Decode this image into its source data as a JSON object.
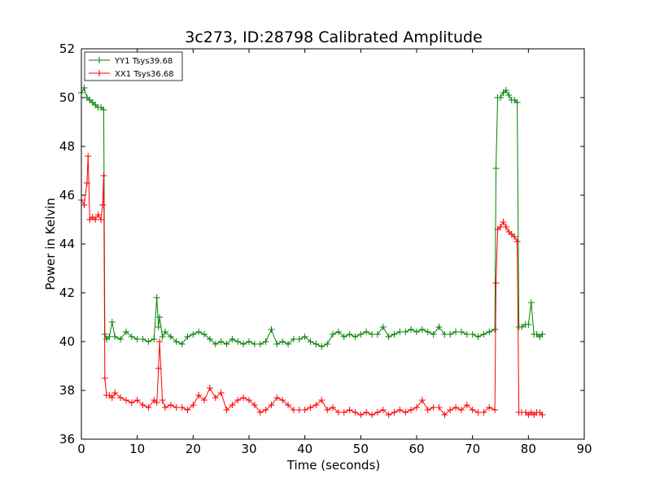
{
  "chart_data": {
    "type": "line",
    "title": "3c273, ID:28798 Calibrated Amplitude",
    "xlabel": "Time (seconds)",
    "ylabel": "Power in Kelvin",
    "xlim": [
      0,
      90
    ],
    "ylim": [
      36,
      52
    ],
    "xticks": [
      0,
      10,
      20,
      30,
      40,
      50,
      60,
      70,
      80,
      90
    ],
    "yticks": [
      36,
      38,
      40,
      42,
      44,
      46,
      48,
      50,
      52
    ],
    "grid": false,
    "legend_position": "top-left",
    "series": [
      {
        "name": "YY1 Tsys39.68",
        "color": "#008000",
        "marker": "plus",
        "x": [
          0.0,
          0.5,
          1.0,
          1.5,
          2.0,
          2.5,
          3.0,
          3.5,
          4.0,
          4.2,
          4.5,
          5.0,
          5.5,
          6.0,
          7.0,
          8.0,
          9.0,
          10.0,
          11.0,
          12.0,
          13.0,
          13.5,
          13.8,
          14.0,
          14.5,
          15.0,
          16.0,
          17.0,
          18.0,
          19.0,
          20.0,
          21.0,
          22.0,
          23.0,
          24.0,
          25.0,
          26.0,
          27.0,
          28.0,
          29.0,
          30.0,
          31.0,
          32.0,
          33.0,
          34.0,
          35.0,
          36.0,
          37.0,
          38.0,
          39.0,
          40.0,
          41.0,
          42.0,
          43.0,
          44.0,
          45.0,
          46.0,
          47.0,
          48.0,
          49.0,
          50.0,
          51.0,
          52.0,
          53.0,
          54.0,
          55.0,
          56.0,
          57.0,
          58.0,
          59.0,
          60.0,
          61.0,
          62.0,
          63.0,
          64.0,
          65.0,
          66.0,
          67.0,
          68.0,
          69.0,
          70.0,
          71.0,
          72.0,
          73.0,
          74.0,
          74.2,
          74.5,
          75.0,
          75.5,
          76.0,
          76.5,
          77.0,
          77.5,
          78.0,
          78.3,
          78.8,
          79.5,
          80.0,
          80.5,
          81.0,
          81.5,
          82.0,
          82.5
        ],
        "y": [
          50.2,
          50.4,
          50.0,
          49.9,
          49.8,
          49.7,
          49.6,
          49.6,
          49.5,
          40.3,
          40.1,
          40.2,
          40.8,
          40.2,
          40.1,
          40.4,
          40.2,
          40.1,
          40.1,
          40.0,
          40.1,
          41.8,
          40.6,
          41.0,
          40.2,
          40.4,
          40.2,
          40.0,
          39.9,
          40.2,
          40.3,
          40.4,
          40.3,
          40.1,
          39.9,
          40.0,
          39.9,
          40.1,
          40.0,
          39.9,
          40.0,
          39.9,
          39.9,
          40.0,
          40.5,
          39.9,
          40.0,
          39.9,
          40.1,
          40.1,
          40.2,
          40.0,
          39.9,
          39.8,
          39.9,
          40.3,
          40.4,
          40.2,
          40.3,
          40.2,
          40.3,
          40.4,
          40.3,
          40.3,
          40.6,
          40.2,
          40.3,
          40.4,
          40.4,
          40.5,
          40.4,
          40.5,
          40.4,
          40.3,
          40.6,
          40.3,
          40.3,
          40.4,
          40.4,
          40.3,
          40.3,
          40.2,
          40.3,
          40.4,
          40.5,
          47.1,
          50.0,
          50.0,
          50.2,
          50.3,
          50.1,
          49.9,
          49.9,
          49.8,
          40.6,
          40.6,
          40.7,
          40.7,
          41.6,
          40.3,
          40.3,
          40.2,
          40.3
        ]
      },
      {
        "name": "XX1 Tsys36.68",
        "color": "#ff0000",
        "marker": "plus",
        "x": [
          0.0,
          0.5,
          1.0,
          1.2,
          1.5,
          2.0,
          2.5,
          3.0,
          3.5,
          3.8,
          4.0,
          4.2,
          4.5,
          5.0,
          5.5,
          6.0,
          7.0,
          8.0,
          9.0,
          10.0,
          11.0,
          12.0,
          13.0,
          13.5,
          13.8,
          14.0,
          14.5,
          15.0,
          16.0,
          17.0,
          18.0,
          19.0,
          20.0,
          21.0,
          22.0,
          23.0,
          24.0,
          25.0,
          26.0,
          27.0,
          28.0,
          29.0,
          30.0,
          31.0,
          32.0,
          33.0,
          34.0,
          35.0,
          36.0,
          37.0,
          38.0,
          39.0,
          40.0,
          41.0,
          42.0,
          43.0,
          44.0,
          45.0,
          46.0,
          47.0,
          48.0,
          49.0,
          50.0,
          51.0,
          52.0,
          53.0,
          54.0,
          55.0,
          56.0,
          57.0,
          58.0,
          59.0,
          60.0,
          61.0,
          62.0,
          63.0,
          64.0,
          65.0,
          66.0,
          67.0,
          68.0,
          69.0,
          70.0,
          71.0,
          72.0,
          73.0,
          74.0,
          74.2,
          74.5,
          75.0,
          75.5,
          76.0,
          76.5,
          77.0,
          77.5,
          78.0,
          78.3,
          78.8,
          79.5,
          80.0,
          80.5,
          81.0,
          81.5,
          82.0,
          82.5
        ],
        "y": [
          45.8,
          45.6,
          46.5,
          47.6,
          45.0,
          45.1,
          45.0,
          45.2,
          45.0,
          45.6,
          46.8,
          38.5,
          37.8,
          37.8,
          37.7,
          37.9,
          37.7,
          37.6,
          37.5,
          37.6,
          37.4,
          37.3,
          37.6,
          37.5,
          38.9,
          40.0,
          37.6,
          37.3,
          37.4,
          37.3,
          37.3,
          37.2,
          37.4,
          37.8,
          37.6,
          38.1,
          37.7,
          37.9,
          37.2,
          37.4,
          37.6,
          37.7,
          37.6,
          37.4,
          37.1,
          37.2,
          37.4,
          37.7,
          37.6,
          37.4,
          37.2,
          37.2,
          37.2,
          37.3,
          37.4,
          37.6,
          37.2,
          37.3,
          37.1,
          37.1,
          37.2,
          37.1,
          37.0,
          37.1,
          37.0,
          37.1,
          37.2,
          37.0,
          37.1,
          37.2,
          37.1,
          37.2,
          37.3,
          37.6,
          37.2,
          37.3,
          37.3,
          37.0,
          37.2,
          37.3,
          37.2,
          37.4,
          37.2,
          37.1,
          37.1,
          37.3,
          37.2,
          42.4,
          44.6,
          44.7,
          44.9,
          44.7,
          44.5,
          44.4,
          44.3,
          44.1,
          37.1,
          37.1,
          37.1,
          37.0,
          37.1,
          37.0,
          37.1,
          37.1,
          37.0
        ]
      }
    ]
  }
}
